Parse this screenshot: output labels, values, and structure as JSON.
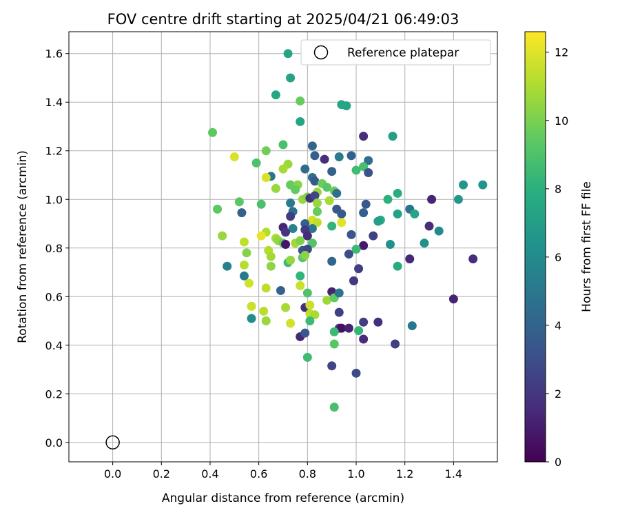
{
  "chart_data": {
    "type": "scatter",
    "title": "FOV centre drift starting at 2025/04/21 06:49:03",
    "xlabel": "Angular distance from reference (arcmin)",
    "ylabel": "Rotation from reference (arcmin)",
    "xlim": [
      -0.18,
      1.58
    ],
    "ylim": [
      -0.08,
      1.69
    ],
    "x_ticks": [
      "0.0",
      "0.2",
      "0.4",
      "0.6",
      "0.8",
      "1.0",
      "1.2",
      "1.4"
    ],
    "y_ticks": [
      "0.0",
      "0.2",
      "0.4",
      "0.6",
      "0.8",
      "1.0",
      "1.2",
      "1.4",
      "1.6"
    ],
    "grid": true,
    "legend_position": "top-right",
    "legend_label": "Reference platepar",
    "reference_point": {
      "x": 0.0,
      "y": 0.0
    },
    "colorbar": {
      "label": "Hours from first FF file",
      "range": [
        0,
        12.6
      ],
      "ticks": [
        "0",
        "2",
        "4",
        "6",
        "8",
        "10",
        "12"
      ],
      "colormap": "viridis"
    },
    "series": [
      {
        "points": [
          [
            0.72,
            1.6,
            7.4
          ],
          [
            0.73,
            1.5,
            7.3
          ],
          [
            0.94,
            1.39,
            7.5
          ],
          [
            0.96,
            1.385,
            7.4
          ],
          [
            0.67,
            1.43,
            7.5
          ],
          [
            0.77,
            1.405,
            9.6
          ],
          [
            0.77,
            1.32,
            7.4
          ],
          [
            0.41,
            1.275,
            9.4
          ],
          [
            1.15,
            1.26,
            7.0
          ],
          [
            1.03,
            1.26,
            1.6
          ],
          [
            0.7,
            1.225,
            8.9
          ],
          [
            0.82,
            1.22,
            4.1
          ],
          [
            0.63,
            1.2,
            9.8
          ],
          [
            0.5,
            1.175,
            11.9
          ],
          [
            0.83,
            1.18,
            3.8
          ],
          [
            0.93,
            1.175,
            5.2
          ],
          [
            0.98,
            1.18,
            3.9
          ],
          [
            1.05,
            1.16,
            4.6
          ],
          [
            0.87,
            1.165,
            1.6
          ],
          [
            0.59,
            1.15,
            9.0
          ],
          [
            0.72,
            1.145,
            10.7
          ],
          [
            0.7,
            1.125,
            10.9
          ],
          [
            0.79,
            1.125,
            4.4
          ],
          [
            1.0,
            1.12,
            8.6
          ],
          [
            1.03,
            1.135,
            8.8
          ],
          [
            0.9,
            1.115,
            3.9
          ],
          [
            1.05,
            1.11,
            3.2
          ],
          [
            0.65,
            1.095,
            4.8
          ],
          [
            0.63,
            1.09,
            11.9
          ],
          [
            0.82,
            1.09,
            4.7
          ],
          [
            0.83,
            1.075,
            3.5
          ],
          [
            0.73,
            1.06,
            9.6
          ],
          [
            0.76,
            1.06,
            10.3
          ],
          [
            0.86,
            1.065,
            9.7
          ],
          [
            0.88,
            1.05,
            9.3
          ],
          [
            1.44,
            1.06,
            6.6
          ],
          [
            1.52,
            1.06,
            6.5
          ],
          [
            0.67,
            1.045,
            10.6
          ],
          [
            0.75,
            1.04,
            9.5
          ],
          [
            0.91,
            1.035,
            9.7
          ],
          [
            0.92,
            1.025,
            4.6
          ],
          [
            0.84,
            1.03,
            10.6
          ],
          [
            1.17,
            1.025,
            7.8
          ],
          [
            0.78,
            1.0,
            10.6
          ],
          [
            0.8,
            1.01,
            10.2
          ],
          [
            0.81,
            1.005,
            1.8
          ],
          [
            0.83,
            1.015,
            2.6
          ],
          [
            1.13,
            1.0,
            8.0
          ],
          [
            1.31,
            1.0,
            1.3
          ],
          [
            1.42,
            1.0,
            6.7
          ],
          [
            0.52,
            0.99,
            9.3
          ],
          [
            0.73,
            0.985,
            5.2
          ],
          [
            0.61,
            0.98,
            8.9
          ],
          [
            0.84,
            0.985,
            10.6
          ],
          [
            0.89,
            0.995,
            10.9
          ],
          [
            1.04,
            0.98,
            3.5
          ],
          [
            0.43,
            0.96,
            9.4
          ],
          [
            0.74,
            0.95,
            4.7
          ],
          [
            0.84,
            0.95,
            9.6
          ],
          [
            0.92,
            0.96,
            3.3
          ],
          [
            0.94,
            0.94,
            3.6
          ],
          [
            1.03,
            0.945,
            3.8
          ],
          [
            1.22,
            0.96,
            4.8
          ],
          [
            1.17,
            0.94,
            7.2
          ],
          [
            1.24,
            0.94,
            7.5
          ],
          [
            0.53,
            0.945,
            4.0
          ],
          [
            0.73,
            0.93,
            2.2
          ],
          [
            0.82,
            0.915,
            11.8
          ],
          [
            0.84,
            0.905,
            11.4
          ],
          [
            0.94,
            0.905,
            12.0
          ],
          [
            1.1,
            0.915,
            7.7
          ],
          [
            1.09,
            0.91,
            7.0
          ],
          [
            0.79,
            0.9,
            3.9
          ],
          [
            0.74,
            0.88,
            5.6
          ],
          [
            0.82,
            0.88,
            4.9
          ],
          [
            0.7,
            0.885,
            1.3
          ],
          [
            0.71,
            0.865,
            1.9
          ],
          [
            0.79,
            0.875,
            2.1
          ],
          [
            0.9,
            0.89,
            8.2
          ],
          [
            0.63,
            0.865,
            11.1
          ],
          [
            1.3,
            0.89,
            1.6
          ],
          [
            1.34,
            0.87,
            6.0
          ],
          [
            0.45,
            0.85,
            10.6
          ],
          [
            0.61,
            0.85,
            12.2
          ],
          [
            0.67,
            0.84,
            10.9
          ],
          [
            0.68,
            0.83,
            10.5
          ],
          [
            0.8,
            0.85,
            1.5
          ],
          [
            0.98,
            0.855,
            3.3
          ],
          [
            1.07,
            0.85,
            2.4
          ],
          [
            0.54,
            0.825,
            11.4
          ],
          [
            0.7,
            0.82,
            9.6
          ],
          [
            0.71,
            0.815,
            0.8
          ],
          [
            0.75,
            0.82,
            10.8
          ],
          [
            0.77,
            0.83,
            10.1
          ],
          [
            0.82,
            0.82,
            9.1
          ],
          [
            1.03,
            0.81,
            0.9
          ],
          [
            1.14,
            0.815,
            6.3
          ],
          [
            1.28,
            0.82,
            6.3
          ],
          [
            0.64,
            0.79,
            11.1
          ],
          [
            0.78,
            0.79,
            3.2
          ],
          [
            0.8,
            0.795,
            2.7
          ],
          [
            1.0,
            0.795,
            8.5
          ],
          [
            0.55,
            0.78,
            10.2
          ],
          [
            0.65,
            0.765,
            10.8
          ],
          [
            0.72,
            0.74,
            8.5
          ],
          [
            0.73,
            0.75,
            10.5
          ],
          [
            0.78,
            0.76,
            9.3
          ],
          [
            0.79,
            0.77,
            10.3
          ],
          [
            0.97,
            0.775,
            3.0
          ],
          [
            1.22,
            0.755,
            1.4
          ],
          [
            1.48,
            0.755,
            1.6
          ],
          [
            0.47,
            0.725,
            5.5
          ],
          [
            0.54,
            0.73,
            11.2
          ],
          [
            0.65,
            0.725,
            10.4
          ],
          [
            0.9,
            0.745,
            4.2
          ],
          [
            1.01,
            0.715,
            2.3
          ],
          [
            1.17,
            0.725,
            7.6
          ],
          [
            0.54,
            0.685,
            5.1
          ],
          [
            0.77,
            0.685,
            8.2
          ],
          [
            0.56,
            0.655,
            11.7
          ],
          [
            0.63,
            0.635,
            11.3
          ],
          [
            0.69,
            0.625,
            4.0
          ],
          [
            0.77,
            0.645,
            11.6
          ],
          [
            0.8,
            0.615,
            9.1
          ],
          [
            0.9,
            0.62,
            1.2
          ],
          [
            0.99,
            0.665,
            2.1
          ],
          [
            1.4,
            0.59,
            1.2
          ],
          [
            0.88,
            0.585,
            10.7
          ],
          [
            0.91,
            0.595,
            9.5
          ],
          [
            0.93,
            0.615,
            4.9
          ],
          [
            0.57,
            0.56,
            11.6
          ],
          [
            0.62,
            0.54,
            11.3
          ],
          [
            0.71,
            0.555,
            10.9
          ],
          [
            0.79,
            0.555,
            1.6
          ],
          [
            0.81,
            0.565,
            11.6
          ],
          [
            0.81,
            0.53,
            11.4
          ],
          [
            0.83,
            0.525,
            10.9
          ],
          [
            0.93,
            0.535,
            2.4
          ],
          [
            0.57,
            0.51,
            6.1
          ],
          [
            0.63,
            0.5,
            10.6
          ],
          [
            0.73,
            0.49,
            11.8
          ],
          [
            0.81,
            0.5,
            8.5
          ],
          [
            0.93,
            0.47,
            2.0
          ],
          [
            0.94,
            0.47,
            0.6
          ],
          [
            0.97,
            0.47,
            1.2
          ],
          [
            1.03,
            0.495,
            2.3
          ],
          [
            1.09,
            0.495,
            1.6
          ],
          [
            1.23,
            0.48,
            5.1
          ],
          [
            0.77,
            0.435,
            1.4
          ],
          [
            0.79,
            0.45,
            3.4
          ],
          [
            0.91,
            0.455,
            8.5
          ],
          [
            1.01,
            0.46,
            8.3
          ],
          [
            1.03,
            0.425,
            1.5
          ],
          [
            1.16,
            0.405,
            2.3
          ],
          [
            0.91,
            0.405,
            9.3
          ],
          [
            0.8,
            0.35,
            8.6
          ],
          [
            0.9,
            0.315,
            2.6
          ],
          [
            1.0,
            0.285,
            2.9
          ],
          [
            0.91,
            0.145,
            8.8
          ]
        ]
      }
    ]
  }
}
